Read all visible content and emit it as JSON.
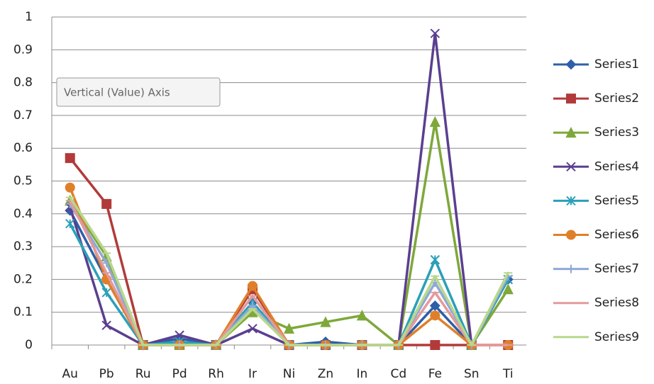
{
  "chart_data": {
    "type": "line",
    "categories": [
      "Au",
      "Pb",
      "Ru",
      "Pd",
      "Rh",
      "Ir",
      "Ni",
      "Zn",
      "In",
      "Cd",
      "Fe",
      "Sn",
      "Ti"
    ],
    "ylim": [
      0,
      1
    ],
    "yticks": [
      0,
      0.1,
      0.2,
      0.3,
      0.4,
      0.5,
      0.6,
      0.7,
      0.8,
      0.9,
      1
    ],
    "grid": true,
    "legend": "right",
    "tooltip": "Vertical (Value) Axis",
    "series": [
      {
        "name": "Series1",
        "color": "#2e5fa8",
        "marker": "diamond",
        "values": [
          0.41,
          0.2,
          0,
          0.02,
          0,
          0.13,
          0,
          0.01,
          0,
          0,
          0.12,
          0,
          0.2
        ]
      },
      {
        "name": "Series2",
        "color": "#b23a3a",
        "marker": "square",
        "values": [
          0.57,
          0.43,
          0,
          0,
          0,
          0.17,
          0,
          0,
          0,
          0,
          0,
          0,
          0
        ]
      },
      {
        "name": "Series3",
        "color": "#7ea83a",
        "marker": "triangle",
        "values": [
          0.44,
          0.27,
          0,
          0,
          0,
          0.1,
          0.05,
          0.07,
          0.09,
          0,
          0.68,
          0,
          0.17
        ]
      },
      {
        "name": "Series4",
        "color": "#5b3f8f",
        "marker": "x",
        "values": [
          0.42,
          0.06,
          0,
          0.03,
          0,
          0.05,
          0,
          0,
          0,
          0,
          0.95,
          0,
          0.2
        ]
      },
      {
        "name": "Series5",
        "color": "#2aa0b8",
        "marker": "star",
        "values": [
          0.37,
          0.16,
          0,
          0.01,
          0,
          0.13,
          0,
          0,
          0,
          0,
          0.26,
          0,
          0.2
        ]
      },
      {
        "name": "Series6",
        "color": "#e07f2a",
        "marker": "circle",
        "values": [
          0.48,
          0.2,
          0,
          0,
          0,
          0.18,
          0,
          0,
          0,
          0,
          0.09,
          0,
          0
        ]
      },
      {
        "name": "Series7",
        "color": "#8fa8d8",
        "marker": "plus",
        "values": [
          0.43,
          0.25,
          0,
          0,
          0,
          0.12,
          0,
          0,
          0,
          0,
          0.19,
          0,
          0.21
        ]
      },
      {
        "name": "Series8",
        "color": "#e39a9a",
        "marker": "dash",
        "values": [
          0.44,
          0.22,
          0,
          0,
          0,
          0.15,
          0,
          0,
          0,
          0,
          0.16,
          0,
          0
        ]
      },
      {
        "name": "Series9",
        "color": "#b8d88a",
        "marker": "dash",
        "values": [
          0.45,
          0.28,
          0,
          0,
          0,
          0.11,
          0,
          0,
          0,
          0,
          0.21,
          0,
          0.22
        ]
      }
    ]
  }
}
